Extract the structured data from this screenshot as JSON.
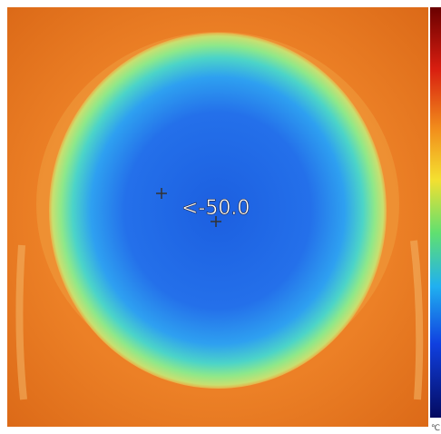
{
  "readout": "<-50.0",
  "scale_unit": "℃"
}
